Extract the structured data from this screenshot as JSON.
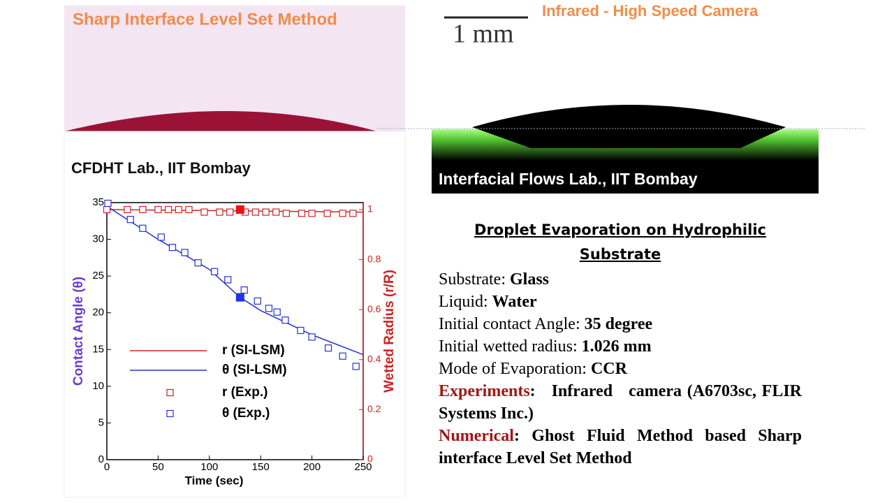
{
  "left_panel": {
    "title": "Sharp Interface Level Set Method",
    "lab": "CFDHT Lab., IIT Bombay"
  },
  "right_panel": {
    "title": "Infrared - High Speed Camera",
    "scale_bar": "1 mm",
    "lab": "Interfacial Flows Lab., IIT Bombay"
  },
  "chart_data": {
    "type": "line",
    "x_label": "Time (sec)",
    "y_label": "Contact Angle (θ)",
    "y2_label": "Wetted Radius (r/R)",
    "xlim": [
      0,
      250
    ],
    "xticks": [
      0,
      50,
      100,
      150,
      200,
      250
    ],
    "ylim": [
      0,
      35
    ],
    "yticks": [
      0,
      5,
      10,
      15,
      20,
      25,
      30,
      35
    ],
    "y2lim": [
      0,
      1.028
    ],
    "y2ticks": [
      0,
      0.2,
      0.4,
      0.6,
      0.8,
      1
    ],
    "series": [
      {
        "name": "r (SI-LSM)",
        "color": "#cc2222",
        "style": "line",
        "axis": "y2",
        "x": [
          0,
          250
        ],
        "values": [
          1.0,
          0.99
        ]
      },
      {
        "name": "θ (SI-LSM)",
        "color": "#2233cc",
        "style": "line",
        "x": [
          0,
          50,
          100,
          130,
          150,
          200,
          250
        ],
        "values": [
          34.5,
          30.0,
          25.9,
          22.1,
          20.3,
          17.0,
          14.3
        ]
      },
      {
        "name": "r (Exp.)",
        "color": "#cc2222",
        "style": "marker",
        "axis": "y2",
        "x": [
          0,
          20,
          35,
          50,
          60,
          70,
          80,
          95,
          110,
          120,
          135,
          145,
          155,
          165,
          175,
          190,
          200,
          215,
          230,
          240
        ],
        "values": [
          1.0,
          1.0,
          1.0,
          1.0,
          1.0,
          1.0,
          1.0,
          0.99,
          0.99,
          0.99,
          0.99,
          0.99,
          0.99,
          0.99,
          0.985,
          0.985,
          0.985,
          0.985,
          0.985,
          0.985
        ]
      },
      {
        "name": "θ (Exp.)",
        "color": "#2233cc",
        "style": "marker",
        "x": [
          1,
          23,
          35,
          53,
          64,
          76,
          89,
          105,
          118,
          134,
          147,
          158,
          166,
          174,
          189,
          200,
          216,
          230,
          243
        ],
        "values": [
          34.9,
          32.7,
          31.5,
          30.3,
          28.9,
          28.2,
          26.8,
          25.6,
          24.5,
          23.1,
          21.6,
          20.6,
          20.1,
          19.0,
          17.6,
          16.7,
          15.2,
          14.1,
          12.7
        ]
      }
    ],
    "highlights": [
      {
        "x": 130,
        "value": 1.0,
        "axis": "y2",
        "color": "#ee1111"
      },
      {
        "x": 130,
        "value": 22.1,
        "color": "#2233ee"
      }
    ]
  },
  "description": {
    "title": "Droplet Evaporation on Hydrophilic Substrate",
    "items": [
      {
        "label": "Substrate:",
        "value": "Glass"
      },
      {
        "label": "Liquid:",
        "value": "Water"
      },
      {
        "label": "Initial contact Angle:",
        "value": "35 degree"
      },
      {
        "label": "Initial wetted radius:",
        "value": "1.026 mm"
      },
      {
        "label": "Mode of Evaporation:",
        "value": "CCR"
      },
      {
        "label": "Experiments",
        "label_color": "#a31515",
        "value": ":   Infrared   camera (A6703sc, FLIR Systems Inc.)"
      },
      {
        "label": "Numerical",
        "label_color": "#a31515",
        "value": ": Ghost Fluid Method based Sharp interface Level Set Method"
      }
    ]
  }
}
